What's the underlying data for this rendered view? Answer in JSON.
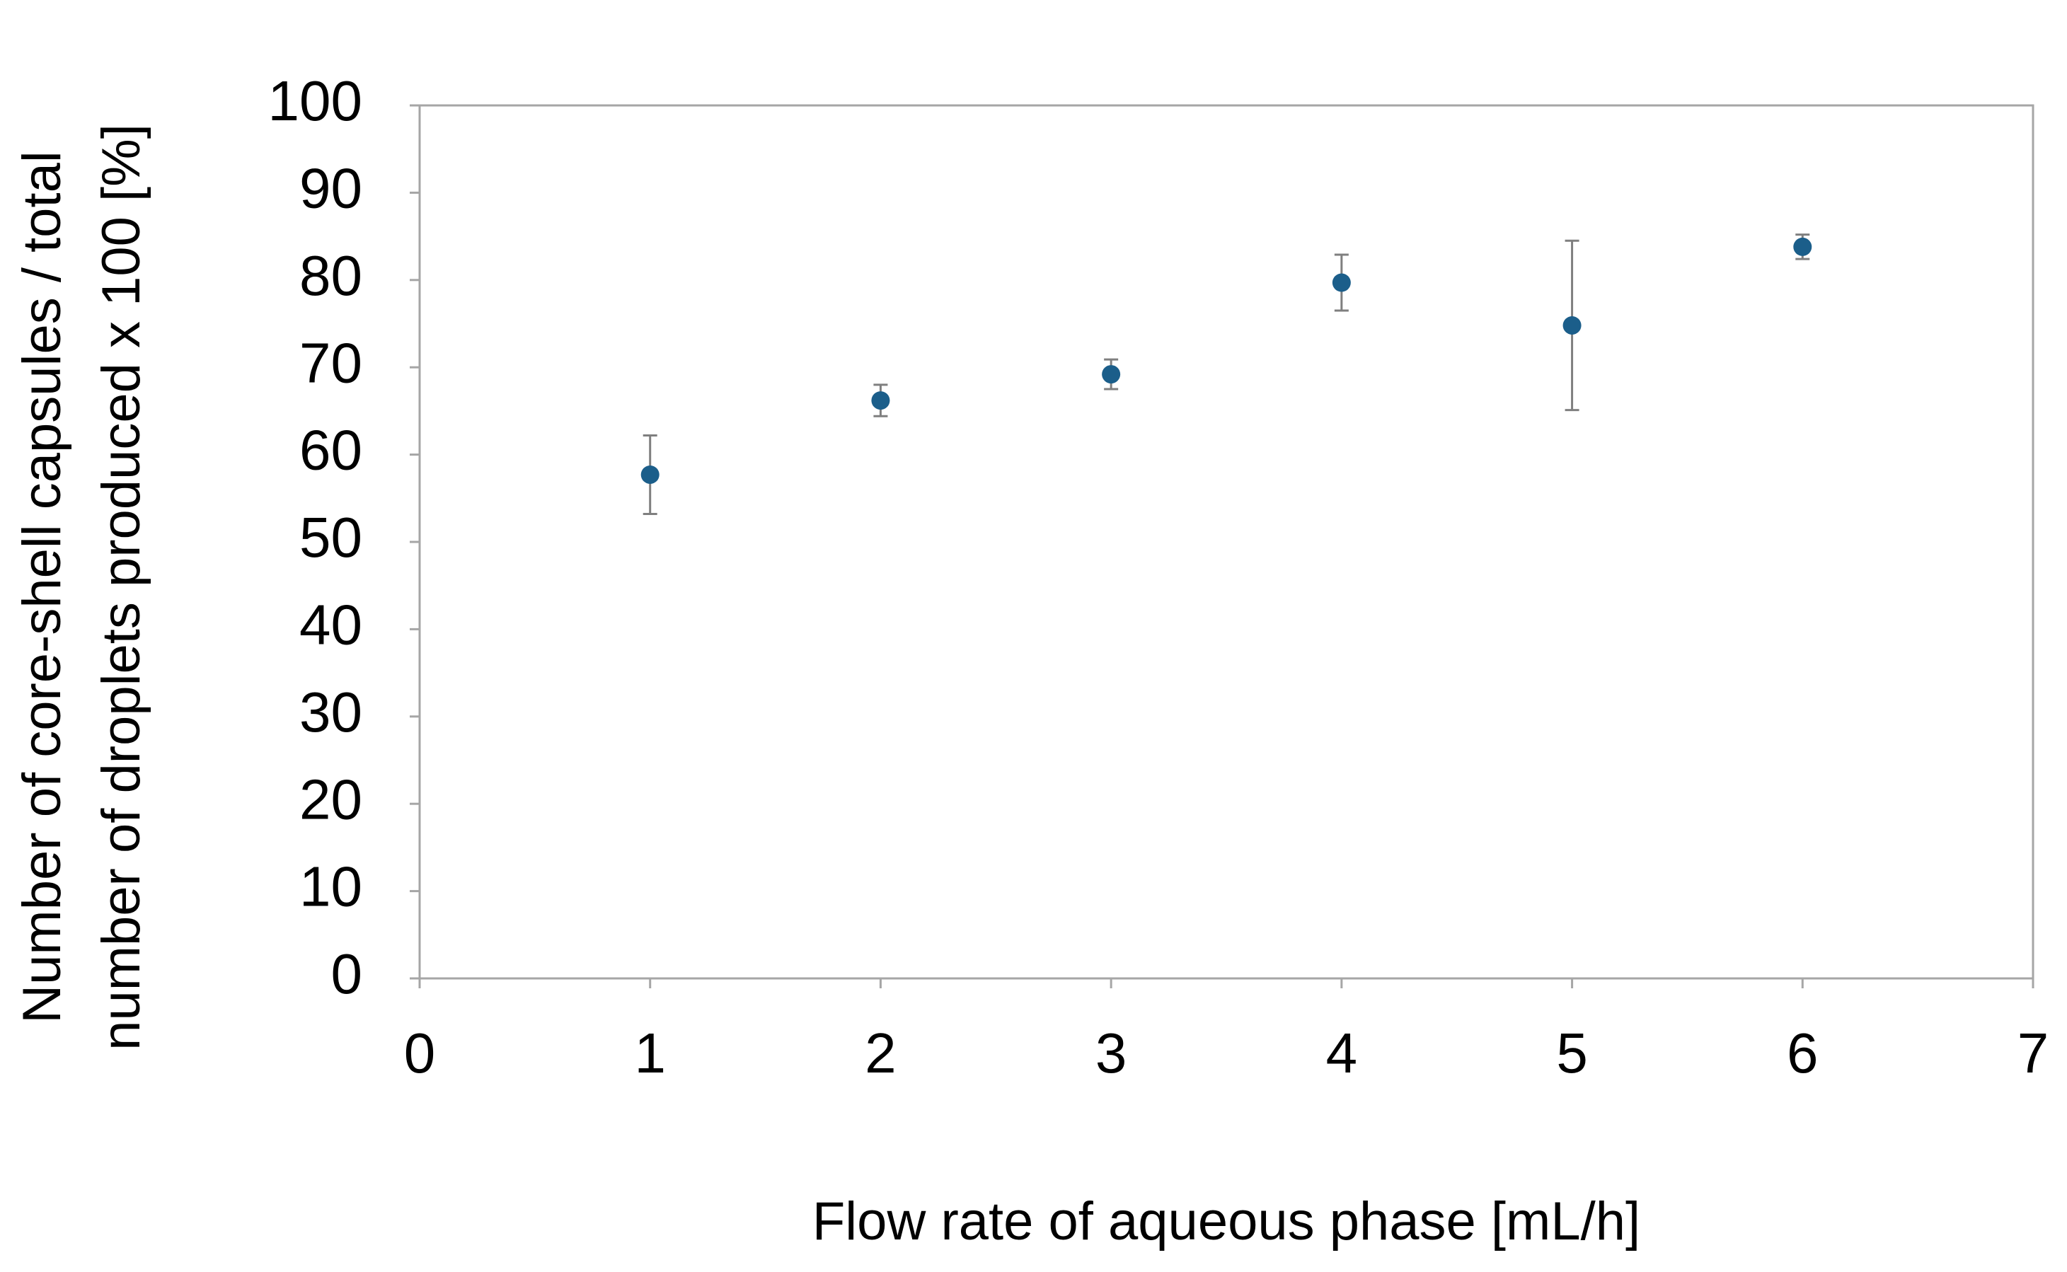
{
  "chart_data": {
    "type": "scatter",
    "xlabel": "Flow rate of aqueous phase [mL/h]",
    "ylabel": [
      "Number of core-shell capsules / total",
      "number of droplets produced x 100 [%]"
    ],
    "series": [
      {
        "color": "#1b5e8a",
        "error_color": "#7f7f7f",
        "x": [
          1,
          2,
          3,
          4,
          5,
          6
        ],
        "values": [
          57.7,
          66.2,
          69.2,
          79.7,
          74.8,
          83.8
        ],
        "errors": [
          4.5,
          1.8,
          1.7,
          3.2,
          9.7,
          1.4
        ]
      }
    ],
    "xlim": [
      0,
      7
    ],
    "xticks": [
      0,
      1,
      2,
      3,
      4,
      5,
      6,
      7
    ],
    "ylim": [
      0,
      100
    ],
    "yticks": [
      0,
      10,
      20,
      30,
      40,
      50,
      60,
      70,
      80,
      90,
      100
    ],
    "grid": false
  }
}
